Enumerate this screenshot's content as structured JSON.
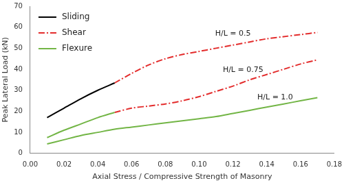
{
  "chart_data": {
    "type": "line",
    "x_label": "Axial Stress / Compressive Strength of Masonry",
    "y_label": "Peak Lateral Load (kN)",
    "xlim": [
      0,
      0.18
    ],
    "xticks": [
      {
        "value": 0,
        "label": "0.00"
      },
      {
        "value": 0.02,
        "label": "0.02"
      },
      {
        "value": 0.04,
        "label": "0.04"
      },
      {
        "value": 0.06,
        "label": "0.06"
      },
      {
        "value": 0.08,
        "label": "0.08"
      },
      {
        "value": 0.1,
        "label": "0.10"
      },
      {
        "value": 0.12,
        "label": "0.12"
      },
      {
        "value": 0.14,
        "label": "0.14"
      },
      {
        "value": 0.16,
        "label": "0.16"
      },
      {
        "value": 0.18,
        "label": "0.18"
      }
    ],
    "ylim": [
      0,
      70
    ],
    "yticks": [
      0,
      10,
      20,
      30,
      40,
      50,
      60,
      70
    ],
    "grid": false,
    "legend": "upper left",
    "series": [
      {
        "name": "Sliding",
        "color": "#000000",
        "line_style": "solid",
        "marker": "none",
        "x": [
          0.01,
          0.02,
          0.03,
          0.04,
          0.05
        ],
        "values": [
          17,
          21.5,
          26,
          30,
          33.5
        ]
      },
      {
        "name": "Shear",
        "color": "#e32b2b",
        "line_style": "dash_dot",
        "marker": "none",
        "x": [
          0.05,
          0.06,
          0.07,
          0.08,
          0.09,
          0.1,
          0.11,
          0.12,
          0.13,
          0.14,
          0.15,
          0.16,
          0.17
        ],
        "values": [
          33.5,
          38,
          42,
          45,
          47,
          48.5,
          50,
          51.5,
          53,
          54.5,
          55.5,
          56.5,
          57.5
        ]
      },
      {
        "name": "Flexure",
        "color": "#72b545",
        "line_style": "solid",
        "marker": "none",
        "x": [
          0.01,
          0.02,
          0.03,
          0.04,
          0.05
        ],
        "values": [
          7.5,
          11,
          14,
          17,
          19.5
        ]
      },
      {
        "name": "Shear",
        "color": "#e32b2b",
        "line_style": "dash_dot",
        "marker": "none",
        "x": [
          0.05,
          0.06,
          0.07,
          0.08,
          0.09,
          0.1,
          0.11,
          0.12,
          0.13,
          0.14,
          0.15,
          0.16,
          0.17
        ],
        "values": [
          19.5,
          21.5,
          22.5,
          23.5,
          25,
          27,
          29.5,
          32,
          35,
          37.5,
          40,
          42.5,
          44.5
        ]
      },
      {
        "name": "Flexure",
        "color": "#72b545",
        "line_style": "solid",
        "marker": "none",
        "x": [
          0.01,
          0.02,
          0.03,
          0.04,
          0.05,
          0.06,
          0.07,
          0.08,
          0.09,
          0.1,
          0.11,
          0.12,
          0.13,
          0.14,
          0.15,
          0.16,
          0.17
        ],
        "values": [
          4.5,
          6.5,
          8.5,
          10,
          11.5,
          12.5,
          13.5,
          14.5,
          15.5,
          16.5,
          17.5,
          19,
          20.5,
          22,
          23.5,
          25,
          26.5
        ]
      }
    ],
    "annotations": [
      {
        "text": "H/L = 0.5",
        "x": 0.12,
        "y": 57
      },
      {
        "text": "H/L = 0.75",
        "x": 0.126,
        "y": 39.5
      },
      {
        "text": "H/L = 1.0",
        "x": 0.145,
        "y": 26.5
      }
    ]
  }
}
